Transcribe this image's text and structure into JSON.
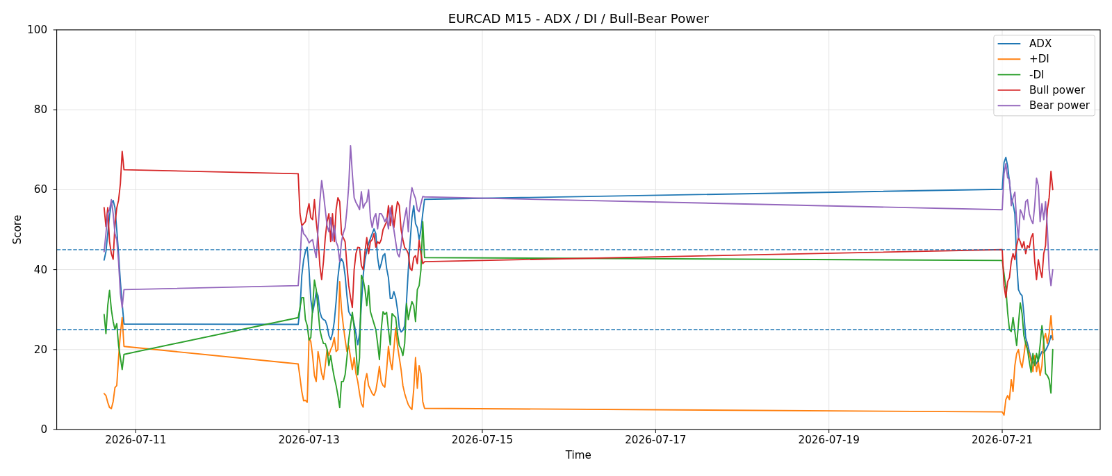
{
  "chart_data": {
    "type": "line",
    "title": "EURCAD M15 - ADX / DI / Bull-Bear Power",
    "xlabel": "Time",
    "ylabel": "Score",
    "x": [
      "2026-07-10T15:15",
      "2026-07-10T15:45",
      "2026-07-10T16:15",
      "2026-07-10T16:45",
      "2026-07-10T17:15",
      "2026-07-10T17:45",
      "2026-07-10T18:15",
      "2026-07-10T18:45",
      "2026-07-10T19:15",
      "2026-07-10T19:45",
      "2026-07-10T20:15",
      "2026-07-10T20:45",
      "2026-07-12T21:00",
      "2026-07-12T21:30",
      "2026-07-12T22:00",
      "2026-07-12T22:30",
      "2026-07-12T23:00",
      "2026-07-12T23:30",
      "2026-07-13T00:00",
      "2026-07-13T00:30",
      "2026-07-13T01:00",
      "2026-07-13T01:30",
      "2026-07-13T02:00",
      "2026-07-13T02:30",
      "2026-07-13T03:00",
      "2026-07-13T03:30",
      "2026-07-13T04:00",
      "2026-07-13T04:30",
      "2026-07-13T05:00",
      "2026-07-13T05:30",
      "2026-07-13T06:00",
      "2026-07-13T06:30",
      "2026-07-13T07:00",
      "2026-07-13T07:30",
      "2026-07-13T08:00",
      "2026-07-13T08:30",
      "2026-07-13T09:00",
      "2026-07-13T09:30",
      "2026-07-13T10:00",
      "2026-07-13T10:30",
      "2026-07-13T11:00",
      "2026-07-13T11:30",
      "2026-07-13T12:00",
      "2026-07-13T12:30",
      "2026-07-13T13:00",
      "2026-07-13T13:30",
      "2026-07-13T14:00",
      "2026-07-13T14:30",
      "2026-07-13T15:00",
      "2026-07-13T15:30",
      "2026-07-13T16:00",
      "2026-07-13T16:30",
      "2026-07-13T17:00",
      "2026-07-13T17:30",
      "2026-07-13T18:00",
      "2026-07-13T18:30",
      "2026-07-13T19:00",
      "2026-07-13T19:30",
      "2026-07-13T20:00",
      "2026-07-13T20:30",
      "2026-07-13T21:00",
      "2026-07-13T21:30",
      "2026-07-13T22:00",
      "2026-07-13T22:30",
      "2026-07-13T23:00",
      "2026-07-13T23:30",
      "2026-07-14T00:00",
      "2026-07-14T00:30",
      "2026-07-14T01:00",
      "2026-07-14T01:30",
      "2026-07-14T02:00",
      "2026-07-14T02:30",
      "2026-07-14T03:00",
      "2026-07-14T03:30",
      "2026-07-14T04:00",
      "2026-07-14T04:30",
      "2026-07-14T05:00",
      "2026-07-14T05:30",
      "2026-07-14T06:00",
      "2026-07-14T06:30",
      "2026-07-14T07:00",
      "2026-07-14T07:30",
      "2026-07-14T08:00",
      "2026-07-21T00:00",
      "2026-07-21T00:30",
      "2026-07-21T01:00",
      "2026-07-21T01:30",
      "2026-07-21T02:00",
      "2026-07-21T02:30",
      "2026-07-21T03:00",
      "2026-07-21T03:30",
      "2026-07-21T04:00",
      "2026-07-21T04:30",
      "2026-07-21T05:00",
      "2026-07-21T05:30",
      "2026-07-21T06:00",
      "2026-07-21T06:30",
      "2026-07-21T07:00",
      "2026-07-21T07:30",
      "2026-07-21T08:00",
      "2026-07-21T08:30",
      "2026-07-21T09:00",
      "2026-07-21T09:30",
      "2026-07-21T10:00",
      "2026-07-21T10:30",
      "2026-07-21T11:00",
      "2026-07-21T11:30",
      "2026-07-21T12:00",
      "2026-07-21T12:30",
      "2026-07-21T13:00",
      "2026-07-21T13:30",
      "2026-07-21T14:00"
    ],
    "series": [
      {
        "name": "ADX",
        "color": "#1f77b4",
        "values": [
          42.4,
          44.5,
          49,
          53.5,
          56.5,
          57.3,
          55.5,
          50,
          44,
          37,
          31.5,
          26.4,
          26.3,
          30,
          38.5,
          42.4,
          44.5,
          45.6,
          40,
          32.5,
          29.3,
          31.5,
          34.5,
          33.5,
          29.5,
          28,
          27.5,
          27.3,
          26,
          23.5,
          22.5,
          24,
          27,
          32,
          38,
          41.8,
          42.7,
          41.8,
          38.5,
          33.5,
          29.5,
          28.6,
          28.3,
          26.5,
          24,
          21.2,
          24,
          31,
          38.5,
          42.5,
          44.8,
          46.5,
          47.8,
          49,
          50.2,
          49,
          43,
          40,
          41.5,
          43.5,
          44,
          40.3,
          38,
          32.8,
          32.8,
          34.5,
          33,
          30,
          25.5,
          24.4,
          24.8,
          26,
          32,
          40,
          47,
          53,
          56,
          51.5,
          50.5,
          47.5,
          50,
          54,
          57.6,
          60.1,
          66.8,
          68.1,
          66,
          62,
          58,
          56.5,
          54,
          42,
          35,
          34,
          33.5,
          29,
          23,
          21.5,
          19.5,
          18,
          16.7,
          16,
          16.5,
          17.5,
          18.5,
          19.5,
          19.2,
          19.8,
          20.7,
          21.8,
          23.5,
          22.5
        ]
      },
      {
        "name": "+DI",
        "color": "#ff7f0e",
        "values": [
          9,
          8.5,
          6.8,
          5.5,
          5.2,
          7,
          10.5,
          11,
          18,
          24,
          28,
          20.8,
          16.4,
          13,
          9.5,
          7.2,
          7.3,
          6.8,
          23,
          22,
          18.4,
          13.5,
          12,
          19.5,
          17,
          14,
          12.5,
          16,
          20,
          18.5,
          20,
          21,
          23,
          19.5,
          20,
          37,
          30,
          26,
          22.5,
          19.5,
          21,
          18,
          15,
          18,
          14,
          12,
          9,
          6.5,
          5.6,
          12,
          14,
          11,
          10,
          9,
          8.5,
          9.7,
          12.5,
          15.8,
          12,
          11,
          10.6,
          15,
          20.8,
          17,
          15,
          20,
          25.4,
          21,
          18,
          15,
          11,
          9,
          7.5,
          6.2,
          5.5,
          5,
          10,
          18,
          10.3,
          16,
          14,
          7,
          5.3,
          4.4,
          3.6,
          7.5,
          8.5,
          7.5,
          12.5,
          9.5,
          16,
          19,
          20,
          17,
          15.5,
          18.5,
          22,
          20,
          19,
          17,
          14.5,
          18.5,
          14.5,
          17,
          13.5,
          16,
          22.5,
          24,
          21.5,
          24,
          28.5,
          22.5
        ]
      },
      {
        "name": "-DI",
        "color": "#2ca02c",
        "values": [
          28.8,
          24,
          31,
          34.8,
          30,
          27,
          25,
          26.5,
          21,
          18,
          15,
          18.8,
          28,
          30.5,
          33,
          33,
          27.5,
          26,
          22.4,
          23,
          30.5,
          37.4,
          35,
          30,
          25,
          23,
          21.5,
          21.5,
          20.1,
          16,
          18.5,
          15.5,
          13,
          11,
          8.5,
          5.5,
          12,
          12,
          13.7,
          18,
          22.5,
          26,
          29.3,
          25.5,
          20,
          13.7,
          18,
          38.6,
          37.5,
          35,
          31,
          36,
          29.5,
          28,
          26.5,
          25,
          21.5,
          17.5,
          25,
          29.5,
          28.8,
          29.3,
          25,
          21.2,
          29,
          28.5,
          28,
          24,
          21,
          20.2,
          18.5,
          21.5,
          31.5,
          27.5,
          30,
          32,
          31,
          27,
          35,
          36,
          40,
          52,
          43,
          42.3,
          39,
          35.5,
          29.3,
          25,
          24.5,
          28,
          24.5,
          21,
          26.5,
          31.7,
          29,
          23.5,
          21.5,
          20,
          17,
          14.3,
          19,
          16,
          19,
          17,
          21.2,
          26,
          22,
          14,
          13.5,
          12.5,
          9.1,
          20
        ]
      },
      {
        "name": "Bull power",
        "color": "#d62728",
        "values": [
          55.5,
          50.8,
          55.5,
          47,
          44,
          42.6,
          51.3,
          55.4,
          57.4,
          61.5,
          69.6,
          65,
          64,
          54,
          51,
          51.5,
          52,
          54.5,
          56.5,
          53,
          52.5,
          57.5,
          52,
          48,
          41,
          37.5,
          42,
          48,
          52,
          54,
          47,
          54,
          47,
          55,
          58,
          57,
          49,
          48,
          47,
          41,
          36,
          33,
          30.5,
          40,
          44,
          45.6,
          45.5,
          41,
          40,
          44.5,
          48,
          44,
          47,
          47.5,
          49,
          45.6,
          47,
          46.5,
          47.5,
          50,
          51,
          52,
          56,
          51,
          56,
          50.5,
          54,
          57,
          56,
          50,
          47.5,
          45.5,
          45,
          44,
          40.3,
          39.8,
          43,
          43.5,
          41.5,
          47.3,
          44,
          41.5,
          42,
          45,
          36,
          33,
          37,
          38,
          42,
          44,
          42.5,
          46,
          48,
          47,
          45.5,
          47,
          44,
          46,
          45.5,
          48,
          49,
          42,
          37.5,
          42.5,
          40,
          38,
          44,
          46,
          55,
          58,
          64.6,
          60
        ]
      },
      {
        "name": "Bear power",
        "color": "#9467bd",
        "values": [
          44.5,
          49,
          54,
          55,
          57.5,
          54,
          49,
          47.5,
          42,
          34,
          30.5,
          35,
          36,
          42,
          51,
          49,
          48.5,
          47.8,
          46.7,
          47.2,
          47.5,
          45,
          43,
          50,
          57,
          62.3,
          59,
          55,
          51,
          49.5,
          53,
          47.3,
          51,
          47,
          45.8,
          42,
          47,
          49.2,
          50.5,
          55,
          61,
          71,
          64,
          58,
          56.8,
          56,
          55,
          59.5,
          55.4,
          56.5,
          57,
          60,
          53,
          50.5,
          53,
          54,
          50.2,
          54,
          54,
          53.2,
          52,
          53,
          50.2,
          55.5,
          52,
          50,
          47,
          44,
          43.2,
          46,
          50.5,
          53,
          55.5,
          49.5,
          57,
          60.5,
          59,
          57.8,
          55,
          54.5,
          56.5,
          58.3,
          58.2,
          55,
          64,
          66.5,
          63,
          62.5,
          56,
          58,
          59.4,
          52,
          48,
          55,
          54,
          52.5,
          57,
          57.5,
          54,
          52.5,
          51.5,
          56,
          62.9,
          61,
          52,
          56.5,
          52.5,
          57,
          50.5,
          40,
          36,
          40
        ]
      }
    ],
    "xlim": [
      "2026-07-10T02:07",
      "2026-07-22T03:08"
    ],
    "xticks": [
      "2026-07-11",
      "2026-07-13",
      "2026-07-15",
      "2026-07-17",
      "2026-07-19",
      "2026-07-21"
    ],
    "ylim": [
      0,
      100
    ],
    "yticks": [
      0,
      20,
      40,
      60,
      80,
      100
    ],
    "ref_lines": [
      {
        "axis": "y",
        "value": 45,
        "color": "#1f77b4",
        "line_style": "dashed"
      },
      {
        "axis": "y",
        "value": 25,
        "color": "#1f77b4",
        "line_style": "dashed"
      }
    ],
    "grid": true,
    "legend": "top right",
    "line_style": "solid"
  }
}
